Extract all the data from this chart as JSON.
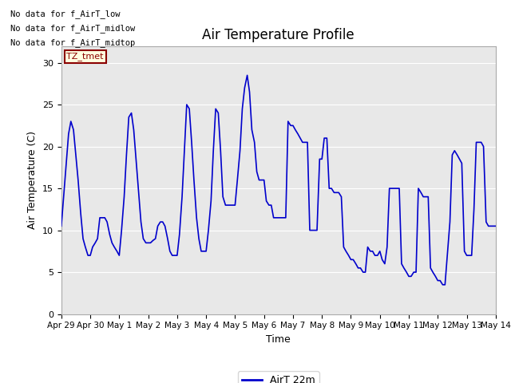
{
  "title": "Air Temperature Profile",
  "xlabel": "Time",
  "ylabel": "Air Temperature (C)",
  "legend_label": "AirT 22m",
  "line_color": "#0000cc",
  "bg_color": "#e8e8e8",
  "fig_bg": "#ffffff",
  "ylim": [
    0,
    32
  ],
  "yticks": [
    0,
    5,
    10,
    15,
    20,
    25,
    30
  ],
  "annotations_left": [
    "No data for f_AirT_low",
    "No data for f_AirT_midlow",
    "No data for f_AirT_midtop"
  ],
  "tz_label": "TZ_tmet",
  "xtick_labels": [
    "Apr 29",
    "Apr 30",
    "May 1",
    "May 2",
    "May 3",
    "May 4",
    "May 5",
    "May 6",
    "May 7",
    "May 8",
    "May 9",
    "May 10",
    "May 11",
    "May 12",
    "May 13",
    "May 14"
  ],
  "time_values": [
    0.0,
    0.08,
    0.17,
    0.25,
    0.33,
    0.42,
    0.5,
    0.58,
    0.67,
    0.75,
    0.83,
    0.92,
    1.0,
    1.08,
    1.17,
    1.25,
    1.33,
    1.42,
    1.5,
    1.58,
    1.67,
    1.75,
    1.83,
    1.92,
    2.0,
    2.08,
    2.17,
    2.25,
    2.33,
    2.42,
    2.5,
    2.58,
    2.67,
    2.75,
    2.83,
    2.92,
    3.0,
    3.08,
    3.17,
    3.25,
    3.33,
    3.42,
    3.5,
    3.58,
    3.67,
    3.75,
    3.83,
    3.92,
    4.0,
    4.08,
    4.17,
    4.25,
    4.33,
    4.42,
    4.5,
    4.58,
    4.67,
    4.75,
    4.83,
    4.92,
    5.0,
    5.08,
    5.17,
    5.25,
    5.33,
    5.42,
    5.5,
    5.58,
    5.67,
    5.75,
    5.83,
    5.92,
    6.0,
    6.08,
    6.17,
    6.25,
    6.33,
    6.42,
    6.5,
    6.58,
    6.67,
    6.75,
    6.83,
    6.92,
    7.0,
    7.08,
    7.17,
    7.25,
    7.33,
    7.42,
    7.5,
    7.58,
    7.67,
    7.75,
    7.83,
    7.92,
    8.0,
    8.08,
    8.17,
    8.25,
    8.33,
    8.42,
    8.5,
    8.58,
    8.67,
    8.75,
    8.83,
    8.92,
    9.0,
    9.08,
    9.17,
    9.25,
    9.33,
    9.42,
    9.5,
    9.58,
    9.67,
    9.75,
    9.83,
    9.92,
    10.0,
    10.08,
    10.17,
    10.25,
    10.33,
    10.42,
    10.5,
    10.58,
    10.67,
    10.75,
    10.83,
    10.92,
    11.0,
    11.08,
    11.17,
    11.25,
    11.33,
    11.42,
    11.5,
    11.58,
    11.67,
    11.75,
    11.83,
    11.92,
    12.0,
    12.08,
    12.17,
    12.25,
    12.33,
    12.42,
    12.5,
    12.58,
    12.67,
    12.75,
    12.83,
    12.92,
    13.0,
    13.08,
    13.17,
    13.25,
    13.33,
    13.42,
    13.5,
    13.58,
    13.67,
    13.75,
    13.83,
    13.92,
    14.0,
    14.08,
    14.17,
    14.25,
    14.33,
    14.42,
    14.5,
    14.58,
    14.67,
    14.75,
    14.83,
    14.92,
    15.0
  ],
  "temp_values": [
    10.5,
    14.0,
    18.0,
    21.5,
    23.0,
    22.0,
    19.0,
    16.0,
    12.0,
    9.0,
    8.0,
    7.0,
    7.0,
    8.0,
    8.5,
    9.0,
    11.5,
    11.5,
    11.5,
    11.0,
    9.5,
    8.5,
    8.0,
    7.5,
    7.0,
    10.0,
    14.0,
    19.0,
    23.5,
    24.0,
    22.0,
    18.5,
    14.5,
    11.0,
    9.0,
    8.5,
    8.5,
    8.5,
    8.8,
    9.0,
    10.5,
    11.0,
    11.0,
    10.5,
    9.0,
    7.5,
    7.0,
    7.0,
    7.0,
    9.5,
    14.0,
    19.5,
    25.0,
    24.5,
    20.5,
    16.0,
    11.5,
    9.0,
    7.5,
    7.5,
    7.5,
    10.0,
    13.5,
    19.5,
    24.5,
    24.0,
    19.5,
    14.0,
    13.0,
    13.0,
    13.0,
    13.0,
    13.0,
    16.0,
    19.5,
    24.5,
    27.0,
    28.5,
    26.5,
    22.0,
    20.5,
    17.0,
    16.0,
    16.0,
    16.0,
    13.5,
    13.0,
    13.0,
    11.5,
    11.5,
    11.5,
    11.5,
    11.5,
    11.5,
    23.0,
    22.5,
    22.5,
    22.0,
    21.5,
    21.0,
    20.5,
    20.5,
    20.5,
    10.0,
    10.0,
    10.0,
    10.0,
    18.5,
    18.5,
    21.0,
    21.0,
    15.0,
    15.0,
    14.5,
    14.5,
    14.5,
    14.0,
    8.0,
    7.5,
    7.0,
    6.5,
    6.5,
    6.0,
    5.5,
    5.5,
    5.0,
    5.0,
    8.0,
    7.5,
    7.5,
    7.0,
    7.0,
    7.5,
    6.5,
    6.0,
    8.0,
    15.0,
    15.0,
    15.0,
    15.0,
    15.0,
    6.0,
    5.5,
    5.0,
    4.5,
    4.5,
    5.0,
    5.0,
    15.0,
    14.5,
    14.0,
    14.0,
    14.0,
    5.5,
    5.0,
    4.5,
    4.0,
    4.0,
    3.5,
    3.5,
    7.0,
    11.0,
    19.0,
    19.5,
    19.0,
    18.5,
    18.0,
    7.5,
    7.0,
    7.0,
    7.0,
    12.5,
    20.5,
    20.5,
    20.5,
    20.0,
    11.0,
    10.5,
    10.5,
    10.5,
    10.5
  ]
}
